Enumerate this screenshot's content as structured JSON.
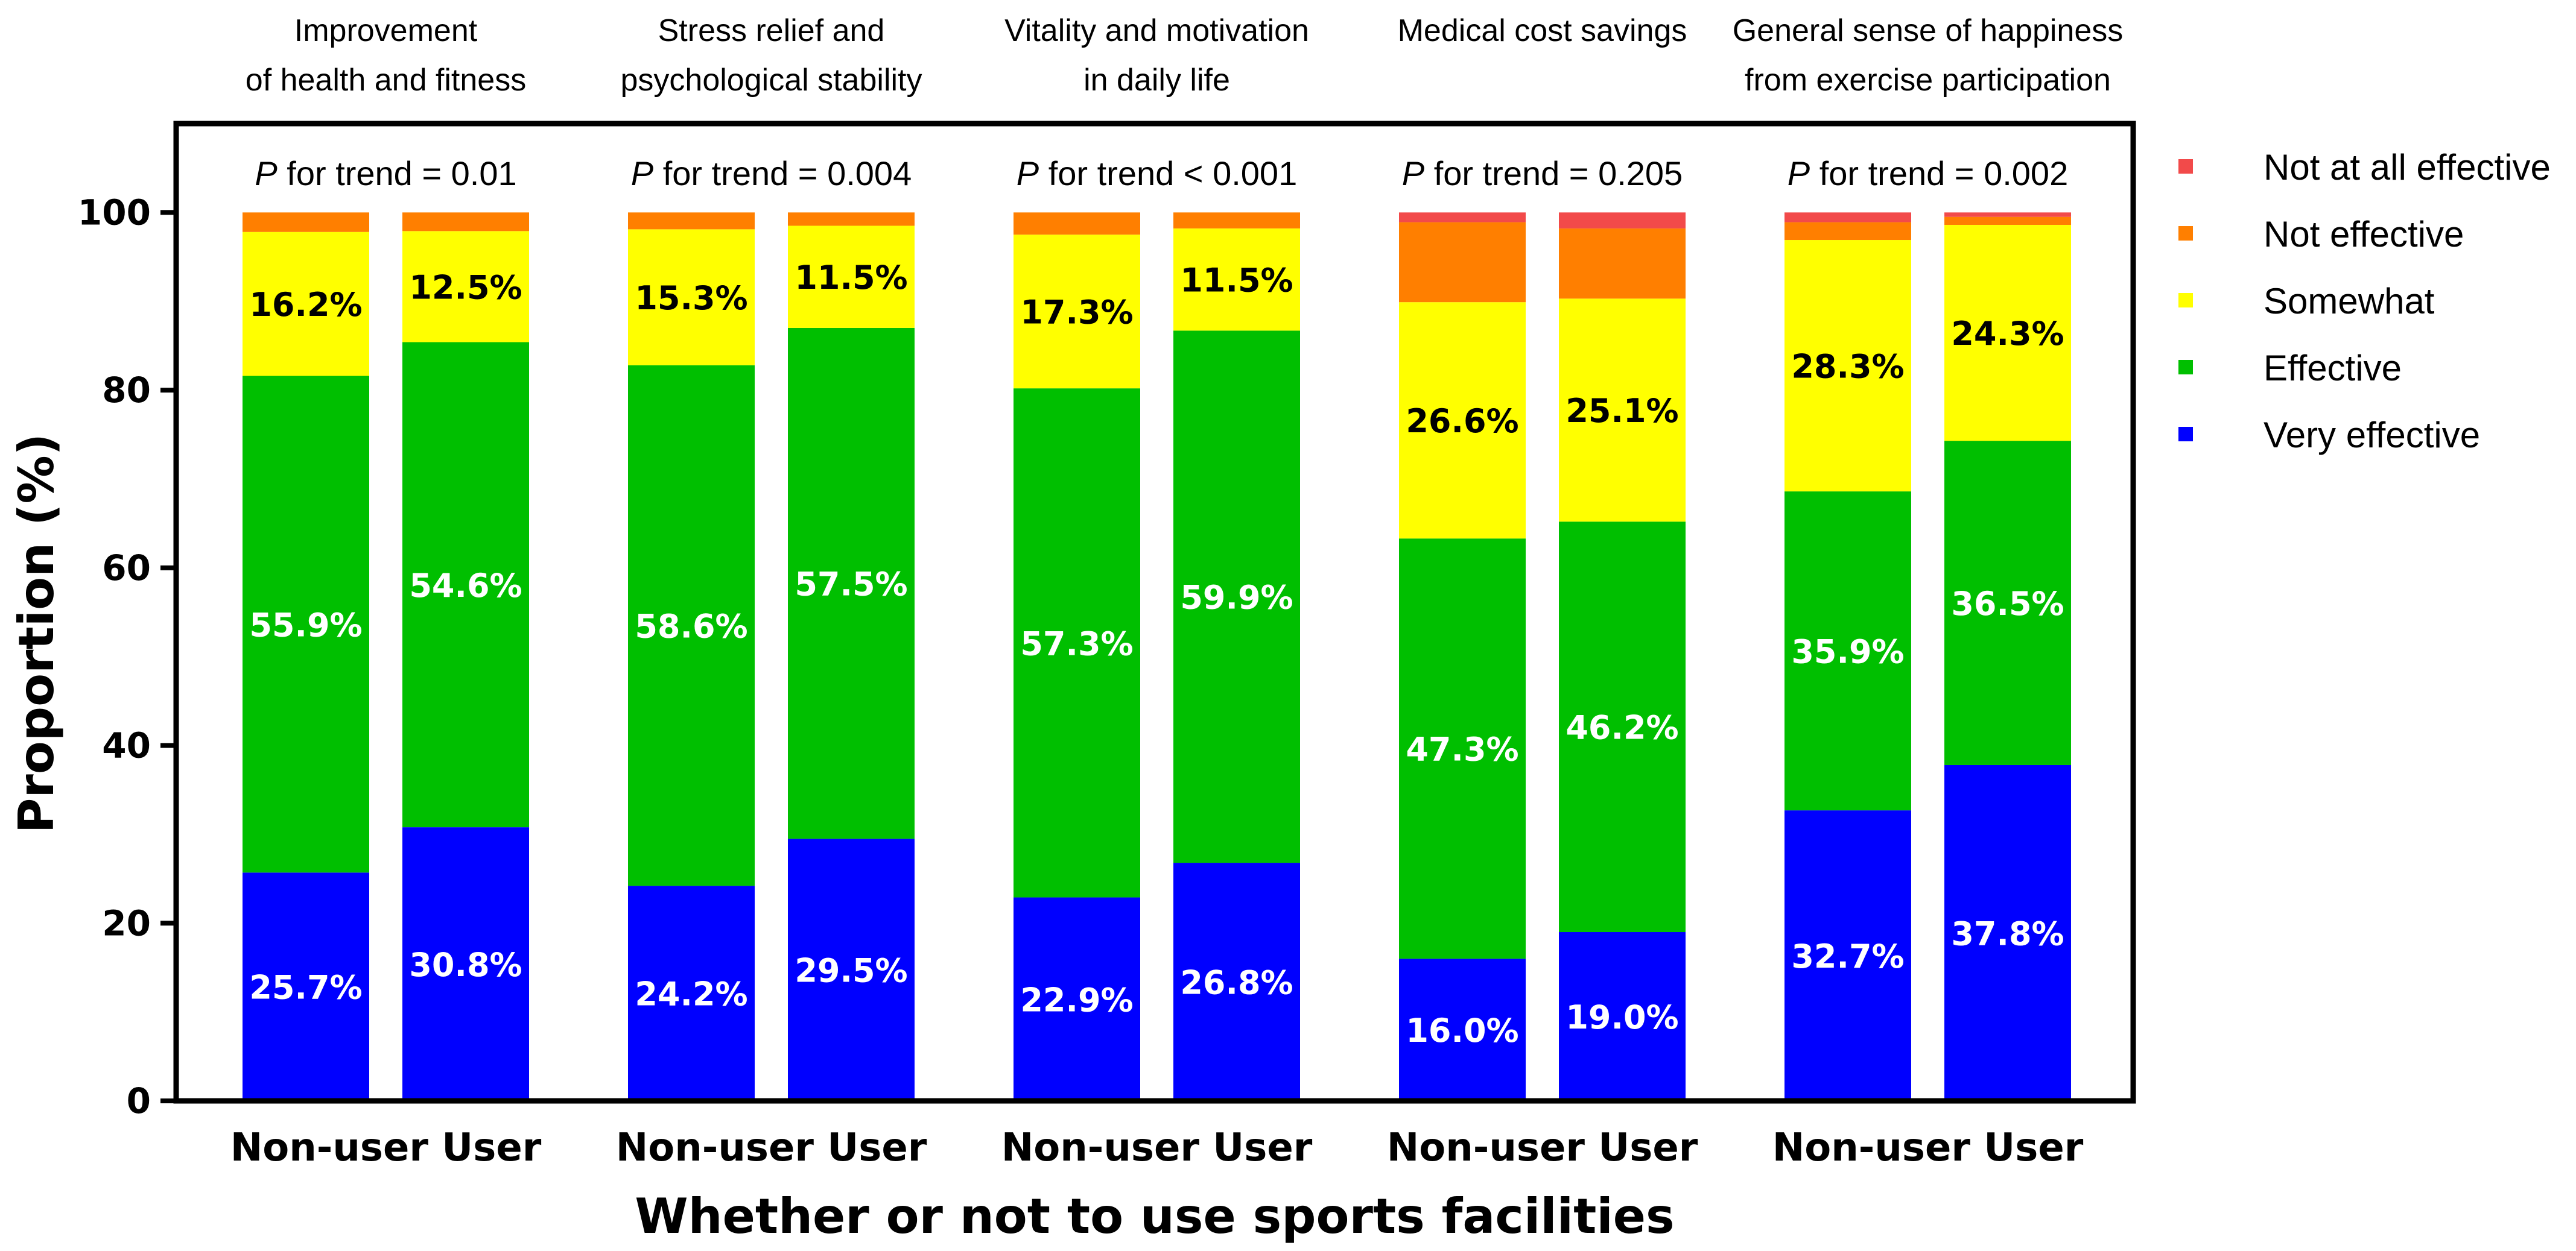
{
  "chart_data": {
    "type": "bar",
    "stacked": true,
    "ylabel": "Proportion (%)",
    "xlabel": "Whether or not to use sports facilities",
    "ylim": [
      0,
      110
    ],
    "yticks": [
      0,
      20,
      40,
      60,
      80,
      100
    ],
    "legend_position": "right",
    "series": [
      {
        "name": "Very effective",
        "color": "#0000ff",
        "label_color": "#ffffff"
      },
      {
        "name": "Effective",
        "color": "#00bf00",
        "label_color": "#ffffff"
      },
      {
        "name": "Somewhat",
        "color": "#ffff00",
        "label_color": "#000000"
      },
      {
        "name": "Not effective",
        "color": "#ff7f00",
        "label_color": "#000000"
      },
      {
        "name": "Not at all effective",
        "color": "#f24a4a",
        "label_color": "#000000"
      }
    ],
    "legend_order": [
      "Not at all effective",
      "Not effective",
      "Somewhat",
      "Effective",
      "Very effective"
    ],
    "groups": [
      {
        "title_lines": [
          "Improvement",
          "of health and fitness"
        ],
        "ptrend_italic": "P",
        "ptrend_rest": " for trend = 0.01",
        "bars": [
          {
            "category": "Non-user",
            "values": [
              25.7,
              55.9,
              16.2,
              2.2,
              0.0
            ],
            "labels": [
              "25.7%",
              "55.9%",
              "16.2%",
              "",
              ""
            ]
          },
          {
            "category": "User",
            "values": [
              30.8,
              54.6,
              12.5,
              2.1,
              0.0
            ],
            "labels": [
              "30.8%",
              "54.6%",
              "12.5%",
              "",
              ""
            ]
          }
        ]
      },
      {
        "title_lines": [
          "Stress relief and",
          "psychological stability"
        ],
        "ptrend_italic": "P",
        "ptrend_rest": " for trend = 0.004",
        "bars": [
          {
            "category": "Non-user",
            "values": [
              24.2,
              58.6,
              15.3,
              1.9,
              0.0
            ],
            "labels": [
              "24.2%",
              "58.6%",
              "15.3%",
              "",
              ""
            ]
          },
          {
            "category": "User",
            "values": [
              29.5,
              57.5,
              11.5,
              1.5,
              0.0
            ],
            "labels": [
              "29.5%",
              "57.5%",
              "11.5%",
              "",
              ""
            ]
          }
        ]
      },
      {
        "title_lines": [
          "Vitality and motivation",
          "in daily life"
        ],
        "ptrend_italic": "P",
        "ptrend_rest": " for trend < 0.001",
        "bars": [
          {
            "category": "Non-user",
            "values": [
              22.9,
              57.3,
              17.3,
              2.5,
              0.0
            ],
            "labels": [
              "22.9%",
              "57.3%",
              "17.3%",
              "",
              ""
            ]
          },
          {
            "category": "User",
            "values": [
              26.8,
              59.9,
              11.5,
              1.8,
              0.0
            ],
            "labels": [
              "26.8%",
              "59.9%",
              "11.5%",
              "",
              ""
            ]
          }
        ]
      },
      {
        "title_lines": [
          "Medical cost savings"
        ],
        "ptrend_italic": "P",
        "ptrend_rest": " for trend = 0.205",
        "bars": [
          {
            "category": "Non-user",
            "values": [
              16.0,
              47.3,
              26.6,
              9.0,
              1.1
            ],
            "labels": [
              "16.0%",
              "47.3%",
              "26.6%",
              "",
              ""
            ]
          },
          {
            "category": "User",
            "values": [
              19.0,
              46.2,
              25.1,
              7.9,
              1.8
            ],
            "labels": [
              "19.0%",
              "46.2%",
              "25.1%",
              "",
              ""
            ]
          }
        ]
      },
      {
        "title_lines": [
          "General sense of happiness",
          "from exercise participation"
        ],
        "ptrend_italic": "P",
        "ptrend_rest": " for trend = 0.002",
        "bars": [
          {
            "category": "Non-user",
            "values": [
              32.7,
              35.9,
              28.3,
              2.0,
              1.1
            ],
            "labels": [
              "32.7%",
              "35.9%",
              "28.3%",
              "",
              ""
            ]
          },
          {
            "category": "User",
            "values": [
              37.8,
              36.5,
              24.3,
              0.9,
              0.5
            ],
            "labels": [
              "37.8%",
              "36.5%",
              "24.3%",
              "",
              ""
            ]
          }
        ]
      }
    ]
  }
}
